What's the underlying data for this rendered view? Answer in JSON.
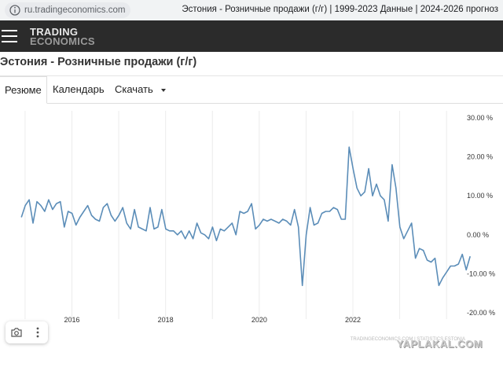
{
  "browser": {
    "url": "ru.tradingeconomics.com",
    "tab_title": "Эстония - Розничные продажи (г/г) | 1999-2023 Данные | 2024-2026 прогноз"
  },
  "header": {
    "logo_line1": "TRADING",
    "logo_line2": "ECONOMICS"
  },
  "page": {
    "title": "Эстония - Розничные продажи (г/г)"
  },
  "tabs": [
    {
      "label": "Резюме",
      "active": true
    },
    {
      "label": "Календарь",
      "active": false
    },
    {
      "label": "Скачать",
      "active": false
    }
  ],
  "chart_data": {
    "type": "line",
    "title": "",
    "xlabel": "",
    "ylabel": "",
    "x_tick_labels": [
      "2016",
      "2018",
      "2020",
      "2022"
    ],
    "y_tick_labels": [
      "30.00 %",
      "20.00 %",
      "10.00 %",
      "0.00 %",
      "-10.00 %",
      "-20.00 %"
    ],
    "y_ticks": [
      30,
      20,
      10,
      0,
      -10,
      -20
    ],
    "ylim": [
      -20,
      30
    ],
    "grid": "vertical",
    "x_start": 2014.92,
    "x_step_months": 1,
    "series_color": "#5b8db8",
    "values": [
      4.5,
      7.5,
      9,
      3,
      8.5,
      7.5,
      6,
      9,
      6.5,
      8,
      8.5,
      2,
      6,
      5.5,
      2.5,
      4.5,
      6,
      7.5,
      5,
      4,
      3.5,
      7,
      8,
      5,
      3.5,
      5,
      7,
      3,
      1.5,
      6.5,
      2,
      1.5,
      1,
      7,
      1.5,
      2,
      6.5,
      1.5,
      1,
      1,
      0,
      1,
      -1,
      1,
      -1,
      3,
      0.5,
      0,
      -1,
      2,
      -1.5,
      1.5,
      1,
      2,
      3,
      0,
      6,
      5.5,
      6,
      8,
      1.5,
      2.5,
      4,
      3.5,
      4,
      3.5,
      3,
      4,
      3.5,
      2.5,
      6.5,
      2,
      -13,
      0,
      7,
      2.5,
      3,
      5.5,
      6,
      6,
      7,
      6.5,
      4,
      4,
      22.5,
      17,
      12,
      10,
      11,
      17,
      10,
      13,
      10,
      9,
      3.5,
      18,
      12,
      2,
      -1,
      1,
      3,
      -6,
      -3.5,
      -4,
      -6.5,
      -7,
      -6,
      -13,
      -11,
      -9.5,
      -8,
      -8,
      -7.5,
      -5,
      -9,
      -5.5
    ],
    "watermark": "TRADINGECONOMICS.COM | STATISTICS ESTONIA"
  },
  "toolbar": {
    "items": [
      "camera-icon",
      "more-vertical-icon"
    ]
  },
  "overlay": {
    "site_watermark": "YAPLAKAL.COM"
  }
}
